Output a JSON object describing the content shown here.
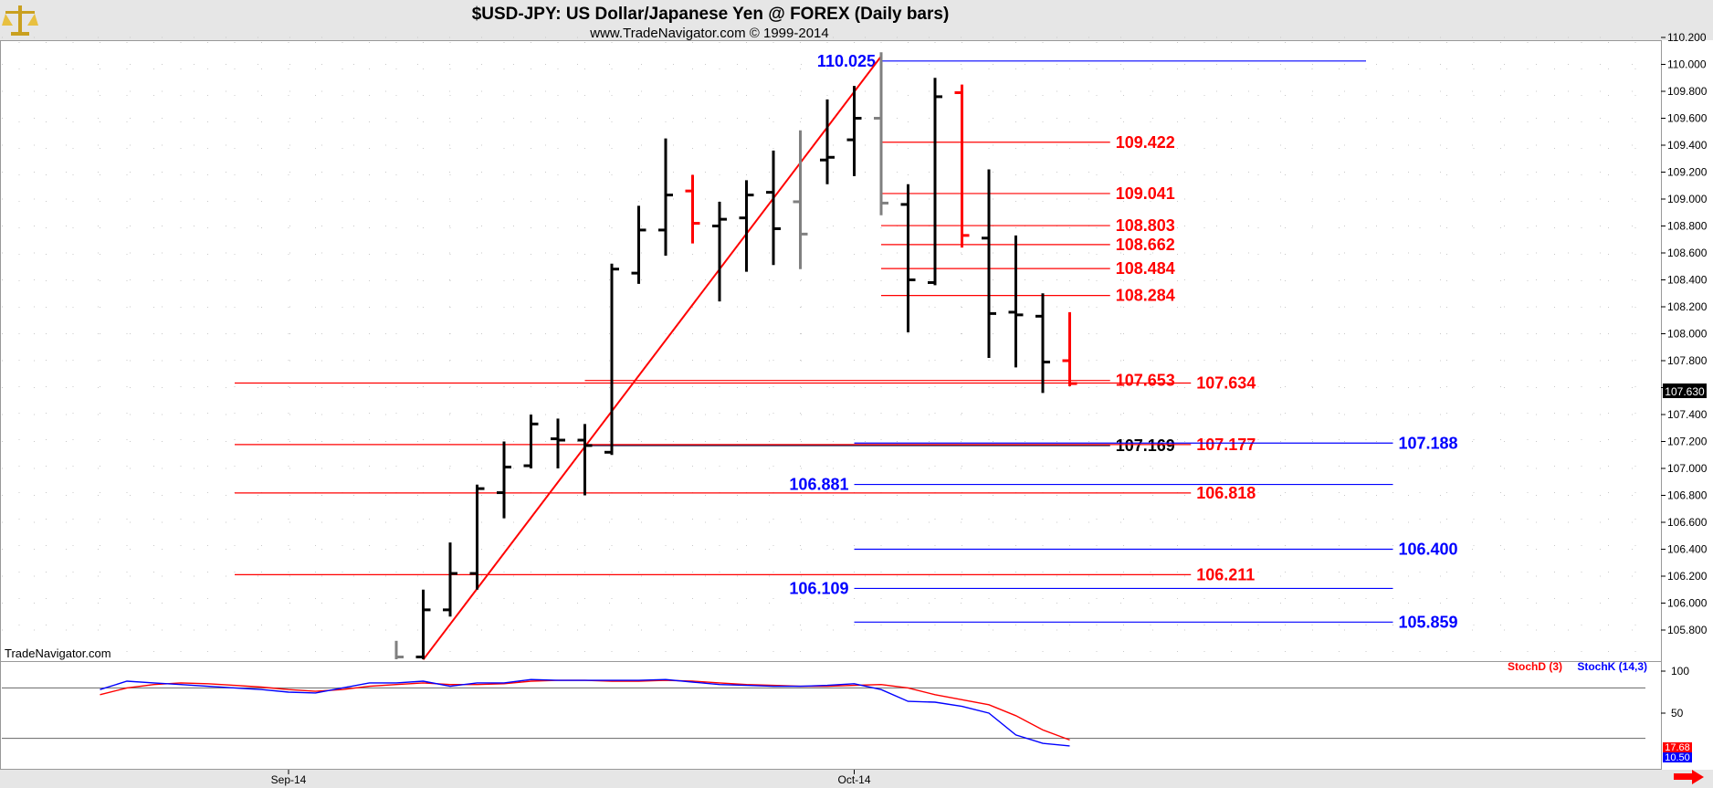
{
  "header": {
    "title": "$USD-JPY:  US Dollar/Japanese Yen @ FOREX  (Daily bars)",
    "subtitle": "www.TradeNavigator.com © 1999-2014",
    "logo_icon": "scale-balance-icon"
  },
  "watermark": "TradeNavigator.com",
  "colors": {
    "up_bar": "#000000",
    "down_bar": "#ff0000",
    "neutral_bar": "#808080",
    "fib_red": "#ff0000",
    "fib_blue": "#0000ff",
    "trendline": "#ff0000",
    "last_price_bg": "#000000",
    "stoch_d": "#ff0000",
    "stoch_k": "#0000ff",
    "header_bg": "#e6e6e6",
    "arrow": "#ff0000"
  },
  "chart_data": [
    {
      "type": "ohlc",
      "title": "$USD-JPY:  US Dollar/Japanese Yen @ FOREX  (Daily bars)",
      "y_axis_side": "right",
      "ylim": [
        105.6,
        110.2
      ],
      "yticks": [
        105.8,
        106.0,
        106.2,
        106.4,
        106.6,
        106.8,
        107.0,
        107.2,
        107.4,
        107.6,
        107.8,
        108.0,
        108.2,
        108.4,
        108.6,
        108.8,
        109.0,
        109.2,
        109.4,
        109.6,
        109.8,
        110.0,
        110.2
      ],
      "ytick_labels": [
        "105.800",
        "106.000",
        "106.200",
        "106.400",
        "106.600",
        "106.800",
        "107.000",
        "107.200",
        "107.400",
        "107.600",
        "107.800",
        "108.000",
        "108.200",
        "108.400",
        "108.600",
        "108.800",
        "109.000",
        "109.200",
        "109.400",
        "109.600",
        "109.800",
        "110.000",
        "110.200"
      ],
      "x_labels": [
        {
          "label": "Sep-14",
          "bar_index": 0
        },
        {
          "label": "Oct-14",
          "bar_index": 21
        }
      ],
      "grid": "dotted",
      "last_price_label": "107.630",
      "bars": [
        {
          "i": 4,
          "o": 105.5,
          "h": 105.72,
          "l": 105.4,
          "c": 105.6,
          "color": "neutral"
        },
        {
          "i": 5,
          "o": 105.6,
          "h": 106.1,
          "l": 105.55,
          "c": 105.95,
          "color": "up"
        },
        {
          "i": 6,
          "o": 105.95,
          "h": 106.45,
          "l": 105.9,
          "c": 106.22,
          "color": "up"
        },
        {
          "i": 7,
          "o": 106.22,
          "h": 106.88,
          "l": 106.1,
          "c": 106.85,
          "color": "up"
        },
        {
          "i": 8,
          "o": 106.82,
          "h": 107.2,
          "l": 106.63,
          "c": 107.01,
          "color": "up"
        },
        {
          "i": 9,
          "o": 107.02,
          "h": 107.4,
          "l": 107.0,
          "c": 107.33,
          "color": "up"
        },
        {
          "i": 10,
          "o": 107.22,
          "h": 107.37,
          "l": 107.0,
          "c": 107.21,
          "color": "up"
        },
        {
          "i": 11,
          "o": 107.21,
          "h": 107.33,
          "l": 106.8,
          "c": 107.17,
          "color": "up"
        },
        {
          "i": 12,
          "o": 107.12,
          "h": 108.52,
          "l": 107.1,
          "c": 108.48,
          "color": "up"
        },
        {
          "i": 13,
          "o": 108.45,
          "h": 108.95,
          "l": 108.37,
          "c": 108.77,
          "color": "up"
        },
        {
          "i": 14,
          "o": 108.77,
          "h": 109.45,
          "l": 108.58,
          "c": 109.03,
          "color": "up"
        },
        {
          "i": 15,
          "o": 109.06,
          "h": 109.18,
          "l": 108.67,
          "c": 108.82,
          "color": "down"
        },
        {
          "i": 16,
          "o": 108.8,
          "h": 108.98,
          "l": 108.24,
          "c": 108.85,
          "color": "up"
        },
        {
          "i": 17,
          "o": 108.86,
          "h": 109.14,
          "l": 108.46,
          "c": 109.03,
          "color": "up"
        },
        {
          "i": 18,
          "o": 109.05,
          "h": 109.36,
          "l": 108.51,
          "c": 108.78,
          "color": "up"
        },
        {
          "i": 19,
          "o": 108.98,
          "h": 109.51,
          "l": 108.48,
          "c": 108.74,
          "color": "neutral"
        },
        {
          "i": 20,
          "o": 109.29,
          "h": 109.74,
          "l": 109.11,
          "c": 109.31,
          "color": "up"
        },
        {
          "i": 21,
          "o": 109.44,
          "h": 109.84,
          "l": 109.17,
          "c": 109.6,
          "color": "up"
        },
        {
          "i": 22,
          "o": 109.6,
          "h": 110.09,
          "l": 108.88,
          "c": 108.97,
          "color": "neutral"
        },
        {
          "i": 23,
          "o": 108.96,
          "h": 109.11,
          "l": 108.01,
          "c": 108.4,
          "color": "up"
        },
        {
          "i": 24,
          "o": 108.38,
          "h": 109.9,
          "l": 108.36,
          "c": 109.76,
          "color": "up"
        },
        {
          "i": 25,
          "o": 109.79,
          "h": 109.85,
          "l": 108.64,
          "c": 108.73,
          "color": "down"
        },
        {
          "i": 26,
          "o": 108.71,
          "h": 109.22,
          "l": 107.82,
          "c": 108.15,
          "color": "up"
        },
        {
          "i": 27,
          "o": 108.16,
          "h": 108.73,
          "l": 107.75,
          "c": 108.14,
          "color": "up"
        },
        {
          "i": 28,
          "o": 108.13,
          "h": 108.3,
          "l": 107.56,
          "c": 107.79,
          "color": "up"
        },
        {
          "i": 29,
          "o": 107.8,
          "h": 108.16,
          "l": 107.61,
          "c": 107.63,
          "color": "down"
        }
      ],
      "trendline": {
        "from": {
          "i": 5,
          "y": 105.58
        },
        "to": {
          "i": 22,
          "y": 110.06
        }
      },
      "fib_levels": [
        {
          "value": 110.025,
          "label": "110.025",
          "color": "blue",
          "from_i": 22,
          "to_i": 40,
          "label_side": "left"
        },
        {
          "value": 109.422,
          "label": "109.422",
          "color": "red",
          "from_i": 22,
          "to_i": 30.5,
          "label_side": "right"
        },
        {
          "value": 109.041,
          "label": "109.041",
          "color": "red",
          "from_i": 22,
          "to_i": 30.5,
          "label_side": "right"
        },
        {
          "value": 108.803,
          "label": "108.803",
          "color": "red",
          "from_i": 22,
          "to_i": 30.5,
          "label_side": "right"
        },
        {
          "value": 108.662,
          "label": "108.662",
          "color": "red",
          "from_i": 22,
          "to_i": 30.5,
          "label_side": "right"
        },
        {
          "value": 108.484,
          "label": "108.484",
          "color": "red",
          "from_i": 22,
          "to_i": 30.5,
          "label_side": "right"
        },
        {
          "value": 108.284,
          "label": "108.284",
          "color": "red",
          "from_i": 22,
          "to_i": 30.5,
          "label_side": "right"
        },
        {
          "value": 107.653,
          "label": "107.653",
          "color": "red",
          "from_i": 11,
          "to_i": 30.5,
          "label_side": "right"
        },
        {
          "value": 107.634,
          "label": "107.634",
          "color": "red",
          "from_i": -2,
          "to_i": 33.5,
          "label_side": "right"
        },
        {
          "value": 107.169,
          "label": "107.169",
          "color": "dark",
          "from_i": 11,
          "to_i": 30.5,
          "label_side": "right"
        },
        {
          "value": 107.177,
          "label": "107.177",
          "color": "red",
          "from_i": -2,
          "to_i": 33.5,
          "label_side": "right"
        },
        {
          "value": 107.188,
          "label": "107.188",
          "color": "blue",
          "from_i": 21,
          "to_i": 41,
          "label_side": "right"
        },
        {
          "value": 106.881,
          "label": "106.881",
          "color": "blue",
          "from_i": 21,
          "to_i": 41,
          "label_side": "left"
        },
        {
          "value": 106.818,
          "label": "106.818",
          "color": "red",
          "from_i": -2,
          "to_i": 33.5,
          "label_side": "right"
        },
        {
          "value": 106.4,
          "label": "106.400",
          "color": "blue",
          "from_i": 21,
          "to_i": 41,
          "label_side": "right"
        },
        {
          "value": 106.211,
          "label": "106.211",
          "color": "red",
          "from_i": -2,
          "to_i": 33.5,
          "label_side": "right"
        },
        {
          "value": 106.109,
          "label": "106.109",
          "color": "blue",
          "from_i": 21,
          "to_i": 41,
          "label_side": "left"
        },
        {
          "value": 105.859,
          "label": "105.859",
          "color": "blue",
          "from_i": 21,
          "to_i": 41,
          "label_side": "right"
        }
      ]
    },
    {
      "type": "line",
      "title": "",
      "ylim": [
        0,
        100
      ],
      "yticks": [
        50,
        100
      ],
      "ytick_labels": [
        "50",
        "100"
      ],
      "reference_lines": [
        80,
        20
      ],
      "legend": "top-right",
      "series": [
        {
          "name": "StochD (3)",
          "color": "red",
          "x": [
            -7,
            -6,
            -5,
            -4,
            -3,
            -2,
            -1,
            0,
            1,
            2,
            3,
            4,
            5,
            6,
            7,
            8,
            9,
            10,
            11,
            12,
            13,
            14,
            15,
            16,
            17,
            18,
            19,
            20,
            21,
            22,
            23,
            24,
            25,
            26,
            27,
            28,
            29
          ],
          "values": [
            72,
            80,
            84,
            86,
            85,
            83,
            81,
            78,
            76,
            78,
            82,
            84,
            86,
            84,
            84,
            85,
            88,
            89,
            89,
            88,
            88,
            89,
            88,
            86,
            84,
            83,
            82,
            82,
            83,
            84,
            80,
            72,
            66,
            60,
            47,
            30,
            18
          ]
        },
        {
          "name": "StochK (14,3)",
          "color": "blue",
          "x": [
            -7,
            -6,
            -5,
            -4,
            -3,
            -2,
            -1,
            0,
            1,
            2,
            3,
            4,
            5,
            6,
            7,
            8,
            9,
            10,
            11,
            12,
            13,
            14,
            15,
            16,
            17,
            18,
            19,
            20,
            21,
            22,
            23,
            24,
            25,
            26,
            27,
            28,
            29
          ],
          "values": [
            78,
            88,
            86,
            84,
            82,
            80,
            78,
            75,
            74,
            80,
            86,
            86,
            88,
            82,
            86,
            86,
            90,
            89,
            89,
            89,
            89,
            90,
            87,
            84,
            83,
            82,
            82,
            83,
            85,
            78,
            64,
            63,
            58,
            50,
            24,
            14,
            11
          ]
        }
      ],
      "last_values": [
        "17.68",
        "10.50"
      ]
    }
  ]
}
